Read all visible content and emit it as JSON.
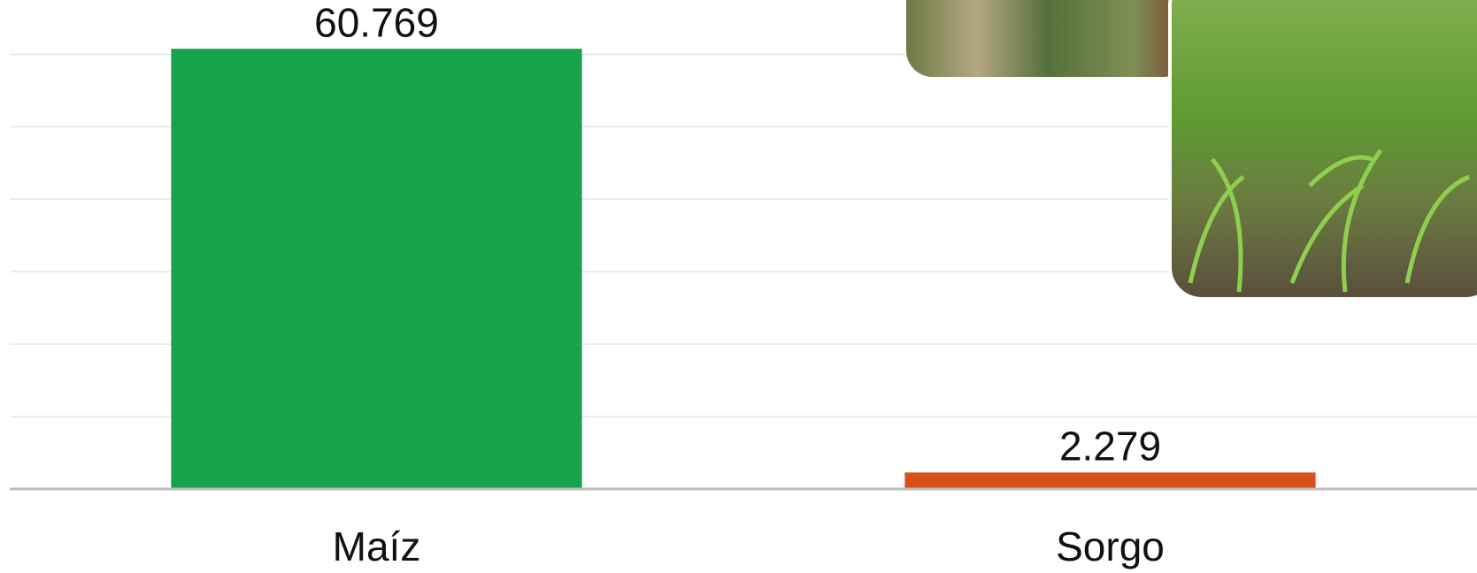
{
  "chart_data": {
    "type": "bar",
    "categories": [
      "Maíz",
      "Sorgo"
    ],
    "values": [
      60.769,
      2.279
    ],
    "colors": [
      "#18a24b",
      "#d9501b"
    ],
    "ylim": [
      0,
      67.5
    ],
    "yticks": [
      10,
      20,
      30,
      40,
      50,
      60
    ],
    "grid": true
  }
}
